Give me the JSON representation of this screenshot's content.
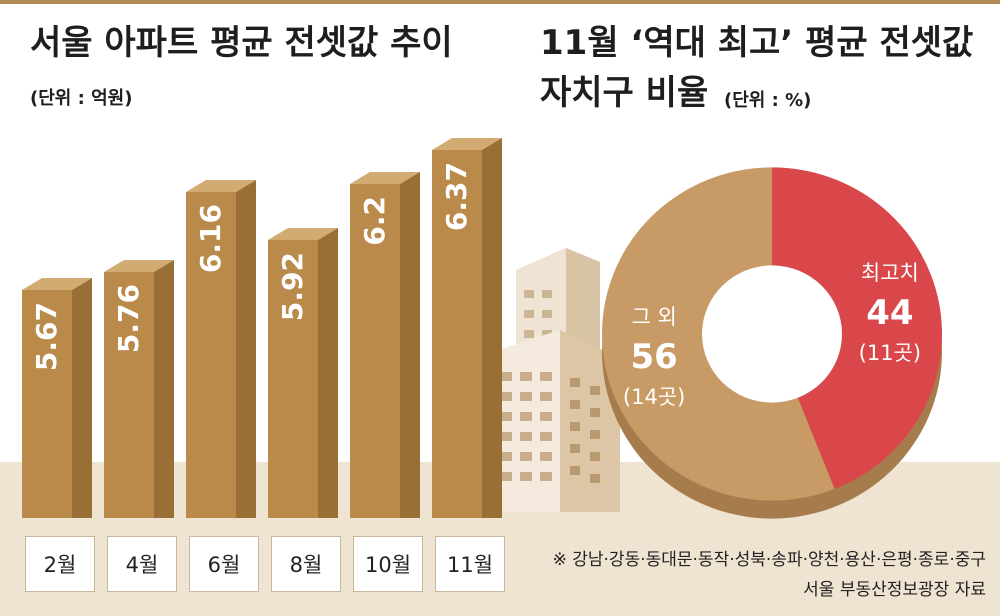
{
  "left_title": "서울 아파트 평균 전셋값 추이",
  "left_unit": "(단위 : 억원)",
  "right_title_line1": "11월 ‘역대 최고’ 평균 전셋값",
  "right_title_line2": "자치구 비율",
  "right_unit": "(단위 : %)",
  "footnote_regions": "※ 강남·강동·동대문·동작·성북·송파·양천·용산·은평·종로·중구",
  "footnote_source": "서울 부동산정보광장 자료",
  "colors": {
    "bar_front": "#b98a4a",
    "bar_side": "#9a6f35",
    "bar_top": "#d2ab72",
    "donut_tan": "#c79a66",
    "donut_red": "#d9474a",
    "ground": "#efe3d1"
  },
  "chart_data": [
    {
      "type": "bar",
      "title": "서울 아파트 평균 전셋값 추이",
      "ylabel": "억원",
      "categories": [
        "2월",
        "4월",
        "6월",
        "8월",
        "10월",
        "11월"
      ],
      "values": [
        5.67,
        5.76,
        6.16,
        5.92,
        6.2,
        6.37
      ],
      "value_labels": [
        "5.67",
        "5.76",
        "6.16",
        "5.92",
        "6.2",
        "6.37"
      ]
    },
    {
      "type": "pie",
      "title": "11월 ‘역대 최고’ 평균 전셋값 자치구 비율",
      "unit": "%",
      "slices": [
        {
          "name": "최고치",
          "value": 44,
          "value_label": "44",
          "count_label": "(11곳)"
        },
        {
          "name": "그 외",
          "value": 56,
          "value_label": "56",
          "count_label": "(14곳)"
        }
      ]
    }
  ]
}
